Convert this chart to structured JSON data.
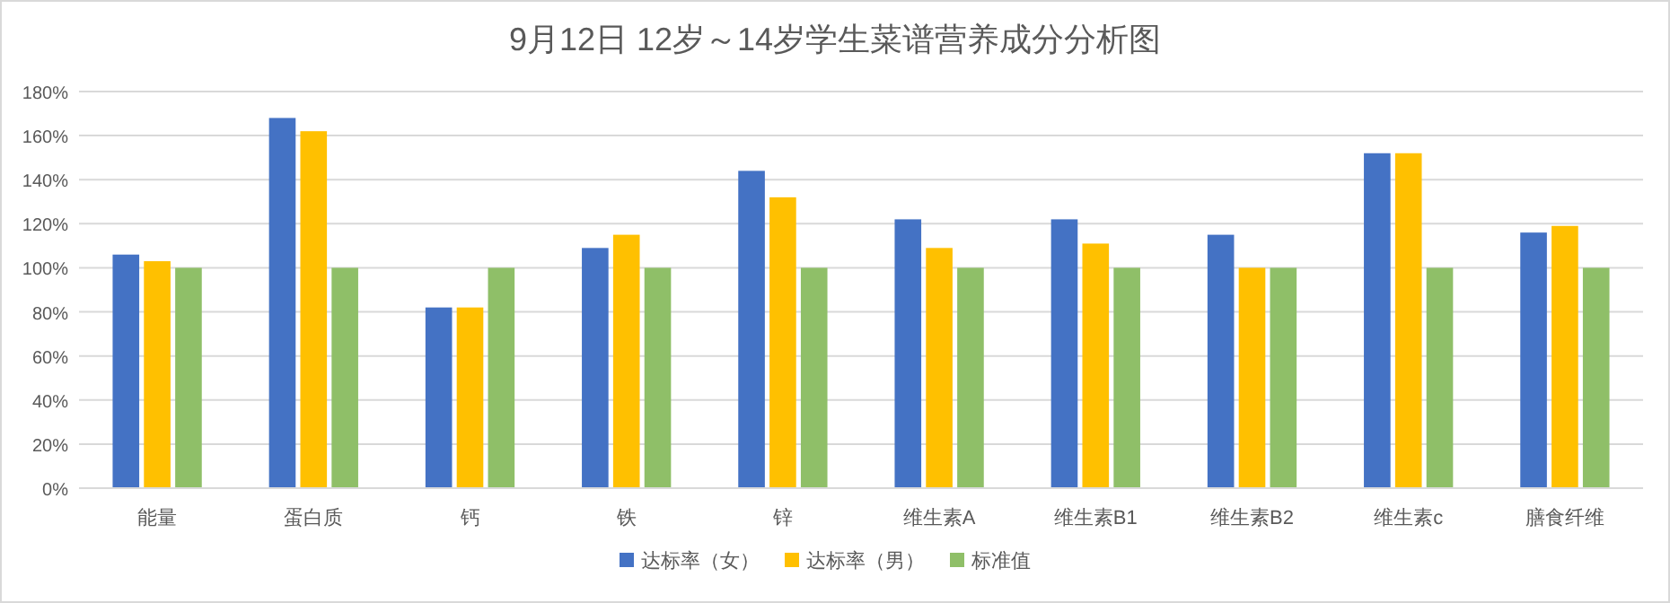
{
  "chart_data": {
    "type": "bar",
    "title": "9月12日 12岁～14岁学生菜谱营养成分分析图",
    "categories": [
      "能量",
      "蛋白质",
      "钙",
      "铁",
      "锌",
      "维生素A",
      "维生素B1",
      "维生素B2",
      "维生素c",
      "膳食纤维"
    ],
    "series": [
      {
        "name": "达标率（女）",
        "color": "#4472c4",
        "values": [
          106,
          168,
          82,
          109,
          144,
          122,
          122,
          115,
          152,
          116
        ]
      },
      {
        "name": "达标率（男）",
        "color": "#ffc000",
        "values": [
          103,
          162,
          82,
          115,
          132,
          109,
          111,
          100,
          152,
          119
        ]
      },
      {
        "name": "标准值",
        "color": "#8fbf68",
        "values": [
          100,
          100,
          100,
          100,
          100,
          100,
          100,
          100,
          100,
          100
        ]
      }
    ],
    "ylim": [
      0,
      180
    ],
    "yticks": [
      {
        "value": 0,
        "label": "0%"
      },
      {
        "value": 20,
        "label": "20%"
      },
      {
        "value": 40,
        "label": "40%"
      },
      {
        "value": 60,
        "label": "60%"
      },
      {
        "value": 80,
        "label": "80%"
      },
      {
        "value": 100,
        "label": "100%"
      },
      {
        "value": 120,
        "label": "120%"
      },
      {
        "value": 140,
        "label": "140%"
      },
      {
        "value": 160,
        "label": "160%"
      },
      {
        "value": 180,
        "label": "180%"
      }
    ],
    "grid": "y",
    "legend": "bottom"
  }
}
